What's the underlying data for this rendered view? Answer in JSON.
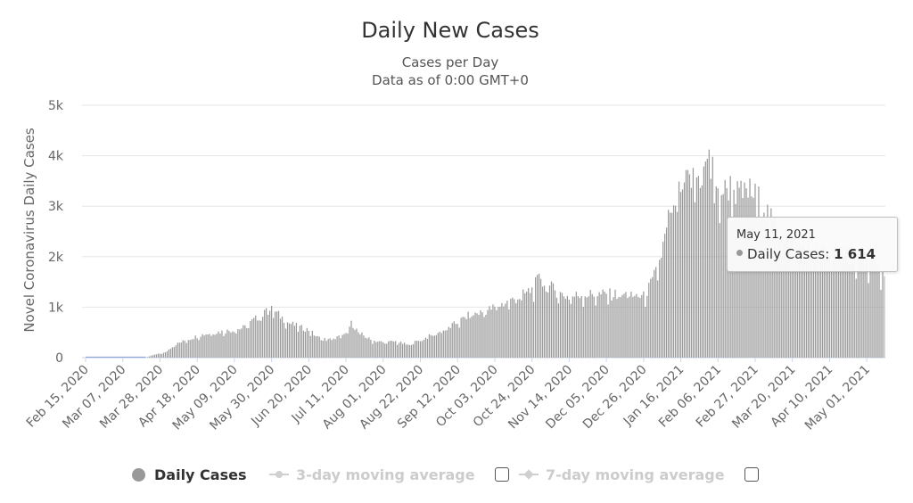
{
  "title": "Daily New Cases",
  "subtitle_line1": "Cases per Day",
  "subtitle_line2": "Data as of 0:00 GMT+0",
  "tooltip": {
    "date": "May 11, 2021",
    "series_label": "Daily Cases:",
    "value_text": "1 614"
  },
  "legend": {
    "daily_cases": "Daily Cases",
    "three_day_avg": "3-day moving average",
    "seven_day_avg": "7-day moving average"
  },
  "colors": {
    "bars": "#999999",
    "grid": "#e6e6e6",
    "inactive_legend": "#cccccc"
  },
  "chart_data": {
    "type": "bar",
    "title": "Daily New Cases",
    "subtitle": "Cases per Day",
    "xlabel": "",
    "ylabel": "Novel Coronavirus Daily Cases",
    "ylim": [
      0,
      5000
    ],
    "y_ticks": [
      "0",
      "1k",
      "2k",
      "3k",
      "4k",
      "5k"
    ],
    "x_start_date": "2020-02-15",
    "x_end_date": "2021-05-11",
    "x_tick_labels": [
      "Feb 15, 2020",
      "Mar 07, 2020",
      "Mar 28, 2020",
      "Apr 18, 2020",
      "May 09, 2020",
      "May 30, 2020",
      "Jun 20, 2020",
      "Jul 11, 2020",
      "Aug 01, 2020",
      "Aug 22, 2020",
      "Sep 12, 2020",
      "Oct 03, 2020",
      "Oct 24, 2020",
      "Nov 14, 2020",
      "Dec 05, 2020",
      "Dec 26, 2020",
      "Jan 16, 2021",
      "Feb 06, 2021",
      "Feb 27, 2021",
      "Mar 20, 2021",
      "Apr 10, 2021",
      "May 01, 2021"
    ],
    "series": [
      {
        "name": "Daily Cases",
        "key_points": [
          [
            "2020-02-15",
            0
          ],
          [
            "2020-03-20",
            0
          ],
          [
            "2020-03-24",
            50
          ],
          [
            "2020-03-31",
            100
          ],
          [
            "2020-04-05",
            250
          ],
          [
            "2020-04-12",
            350
          ],
          [
            "2020-04-20",
            450
          ],
          [
            "2020-04-28",
            500
          ],
          [
            "2020-05-09",
            550
          ],
          [
            "2020-05-15",
            600
          ],
          [
            "2020-05-20",
            750
          ],
          [
            "2020-05-25",
            850
          ],
          [
            "2020-05-30",
            950
          ],
          [
            "2020-06-03",
            850
          ],
          [
            "2020-06-08",
            700
          ],
          [
            "2020-06-15",
            600
          ],
          [
            "2020-06-20",
            550
          ],
          [
            "2020-06-25",
            400
          ],
          [
            "2020-07-01",
            350
          ],
          [
            "2020-07-06",
            400
          ],
          [
            "2020-07-11",
            450
          ],
          [
            "2020-07-14",
            700
          ],
          [
            "2020-07-18",
            500
          ],
          [
            "2020-07-25",
            350
          ],
          [
            "2020-08-01",
            300
          ],
          [
            "2020-08-08",
            320
          ],
          [
            "2020-08-15",
            250
          ],
          [
            "2020-08-22",
            350
          ],
          [
            "2020-08-29",
            450
          ],
          [
            "2020-09-05",
            550
          ],
          [
            "2020-09-12",
            700
          ],
          [
            "2020-09-19",
            850
          ],
          [
            "2020-09-26",
            900
          ],
          [
            "2020-10-03",
            1000
          ],
          [
            "2020-10-10",
            1100
          ],
          [
            "2020-10-17",
            1200
          ],
          [
            "2020-10-24",
            1350
          ],
          [
            "2020-10-28",
            1550
          ],
          [
            "2020-11-03",
            1400
          ],
          [
            "2020-11-10",
            1250
          ],
          [
            "2020-11-14",
            1200
          ],
          [
            "2020-11-21",
            1250
          ],
          [
            "2020-11-28",
            1250
          ],
          [
            "2020-12-05",
            1250
          ],
          [
            "2020-12-12",
            1250
          ],
          [
            "2020-12-19",
            1250
          ],
          [
            "2020-12-26",
            1200
          ],
          [
            "2020-12-31",
            1500
          ],
          [
            "2021-01-04",
            1900
          ],
          [
            "2021-01-08",
            2500
          ],
          [
            "2021-01-10",
            3000
          ],
          [
            "2021-01-13",
            2800
          ],
          [
            "2021-01-16",
            3400
          ],
          [
            "2021-01-22",
            3500
          ],
          [
            "2021-01-28",
            3600
          ],
          [
            "2021-02-01",
            3900
          ],
          [
            "2021-02-04",
            3100
          ],
          [
            "2021-02-08",
            3300
          ],
          [
            "2021-02-13",
            3400
          ],
          [
            "2021-02-18",
            3200
          ],
          [
            "2021-02-23",
            3300
          ],
          [
            "2021-02-27",
            3200
          ],
          [
            "2021-03-04",
            3000
          ],
          [
            "2021-03-08",
            2700
          ],
          [
            "2021-03-13",
            2500
          ],
          [
            "2021-03-20",
            2300
          ],
          [
            "2021-03-27",
            2200
          ],
          [
            "2021-04-03",
            2100
          ],
          [
            "2021-04-10",
            2100
          ],
          [
            "2021-04-17",
            2050
          ],
          [
            "2021-04-24",
            2000
          ],
          [
            "2021-05-01",
            1900
          ],
          [
            "2021-05-06",
            1800
          ],
          [
            "2021-05-11",
            1614
          ]
        ],
        "spikes": [
          [
            "2020-05-27",
            980
          ],
          [
            "2020-07-14",
            730
          ],
          [
            "2020-10-29",
            1560
          ],
          [
            "2021-01-31",
            3940
          ],
          [
            "2021-02-03",
            3980
          ],
          [
            "2021-02-10",
            3520
          ],
          [
            "2021-02-21",
            3470
          ]
        ]
      }
    ],
    "legend_position": "bottom",
    "grid": true
  }
}
